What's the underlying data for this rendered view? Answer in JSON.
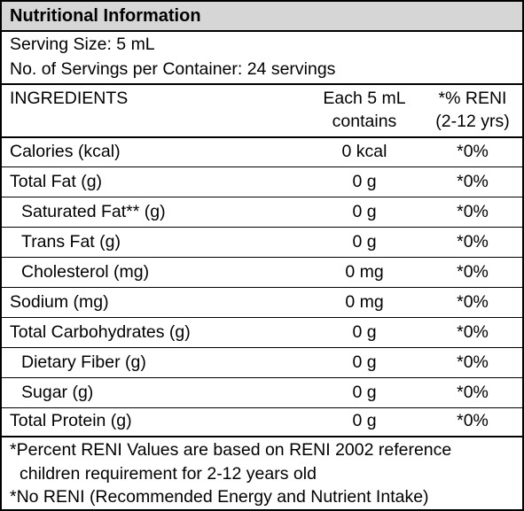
{
  "title": "Nutritional Information",
  "serving": {
    "size": "Serving Size: 5 mL",
    "servings": "No. of Servings per Container: 24 servings"
  },
  "header": {
    "ingredients": "INGREDIENTS",
    "amount_line1": "Each 5 mL",
    "amount_line2": "contains",
    "reni_line1": "*% RENI",
    "reni_line2": "(2-12 yrs)"
  },
  "rows": [
    {
      "name": "Calories (kcal)",
      "amount": "0 kcal",
      "reni": "*0%"
    },
    {
      "name": "Total Fat (g)",
      "amount": "0 g",
      "reni": "*0%"
    },
    {
      "name": "Saturated Fat** (g)",
      "amount": "0 g",
      "reni": "*0%"
    },
    {
      "name": "Trans Fat (g)",
      "amount": "0 g",
      "reni": "*0%"
    },
    {
      "name": "Cholesterol (mg)",
      "amount": "0 mg",
      "reni": "*0%"
    },
    {
      "name": "Sodium (mg)",
      "amount": "0 mg",
      "reni": "*0%"
    },
    {
      "name": "Total Carbohydrates (g)",
      "amount": "0 g",
      "reni": "*0%"
    },
    {
      "name": "Dietary Fiber (g)",
      "amount": "0 g",
      "reni": "*0%"
    },
    {
      "name": "Sugar (g)",
      "amount": "0 g",
      "reni": "*0%"
    },
    {
      "name": "Total Protein (g)",
      "amount": "0 g",
      "reni": "*0%"
    }
  ],
  "footnotes": {
    "line1": "*Percent RENI Values are based on RENI 2002 reference",
    "line2": "children requirement for 2-12 years old",
    "line3": "*No RENI (Recommended Energy and Nutrient Intake)"
  }
}
